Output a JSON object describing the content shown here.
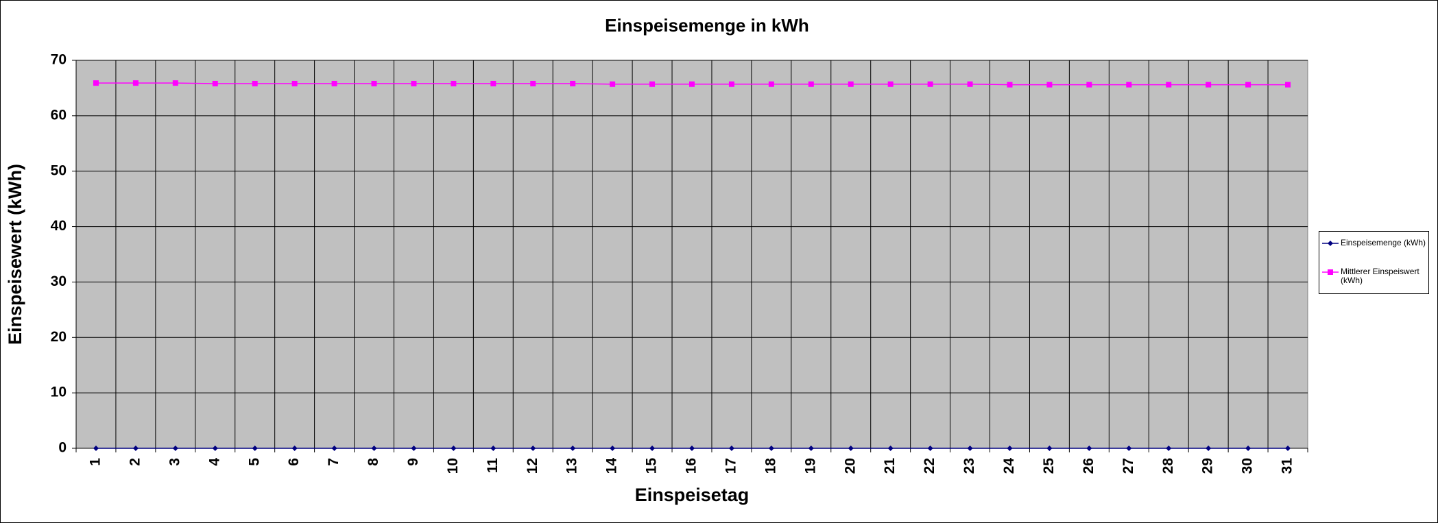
{
  "chart_data": {
    "type": "line",
    "title": "Einspeisemenge in kWh",
    "x_label": "Einspeisetag",
    "y_label": "Einspeisewert  (kWh)",
    "categories": [
      "1",
      "2",
      "3",
      "4",
      "5",
      "6",
      "7",
      "8",
      "9",
      "10",
      "11",
      "12",
      "13",
      "14",
      "15",
      "16",
      "17",
      "18",
      "19",
      "20",
      "21",
      "22",
      "23",
      "24",
      "25",
      "26",
      "27",
      "28",
      "29",
      "30",
      "31"
    ],
    "series": [
      {
        "name": "Einspeisemenge (kWh)",
        "color": "#000080",
        "marker": "diamond",
        "values": [
          0,
          0,
          0,
          0,
          0,
          0,
          0,
          0,
          0,
          0,
          0,
          0,
          0,
          0,
          0,
          0,
          0,
          0,
          0,
          0,
          0,
          0,
          0,
          0,
          0,
          0,
          0,
          0,
          0,
          0,
          0
        ]
      },
      {
        "name": "Mittlerer Einspeiswert (kWh)",
        "color": "#ff00ff",
        "marker": "square",
        "values": [
          65.9,
          65.9,
          65.9,
          65.8,
          65.8,
          65.8,
          65.8,
          65.8,
          65.8,
          65.8,
          65.8,
          65.8,
          65.8,
          65.7,
          65.7,
          65.7,
          65.7,
          65.7,
          65.7,
          65.7,
          65.7,
          65.7,
          65.7,
          65.6,
          65.6,
          65.6,
          65.6,
          65.6,
          65.6,
          65.6,
          65.6
        ]
      }
    ],
    "ylim": [
      0,
      70
    ],
    "yticks": [
      0,
      10,
      20,
      30,
      40,
      50,
      60,
      70
    ],
    "grid": true,
    "legend": "right",
    "plot_background": "#c0c0c0"
  }
}
